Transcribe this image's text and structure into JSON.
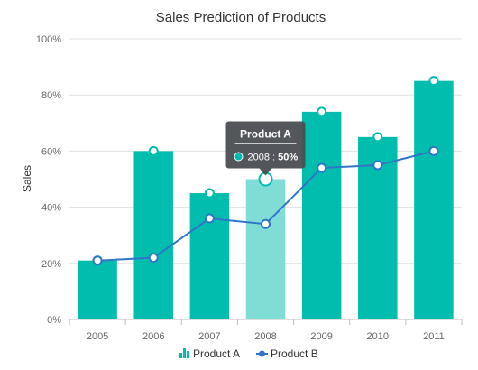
{
  "chart_data": {
    "type": "bar",
    "title": "Sales Prediction of Products",
    "xlabel": "",
    "ylabel": "Sales",
    "ylim": [
      0,
      100
    ],
    "yticks": [
      0,
      20,
      40,
      60,
      80,
      100
    ],
    "ytick_suffix": "%",
    "grid": true,
    "legend_position": "bottom",
    "categories": [
      "2005",
      "2006",
      "2007",
      "2008",
      "2009",
      "2010",
      "2011"
    ],
    "series": [
      {
        "name": "Product A",
        "type": "bar",
        "values": [
          21,
          60,
          45,
          50,
          74,
          65,
          85
        ],
        "color": "#00bdae",
        "highlight_color": "#80ddd6"
      },
      {
        "name": "Product B",
        "type": "line",
        "values": [
          21,
          22,
          36,
          34,
          54,
          55,
          60
        ],
        "color": "#2f76c8"
      }
    ],
    "tooltip": {
      "title": "Product A",
      "text_prefix": "2008 : ",
      "text_value": "50%",
      "category_index": 3,
      "background": "#4a4d52"
    }
  }
}
